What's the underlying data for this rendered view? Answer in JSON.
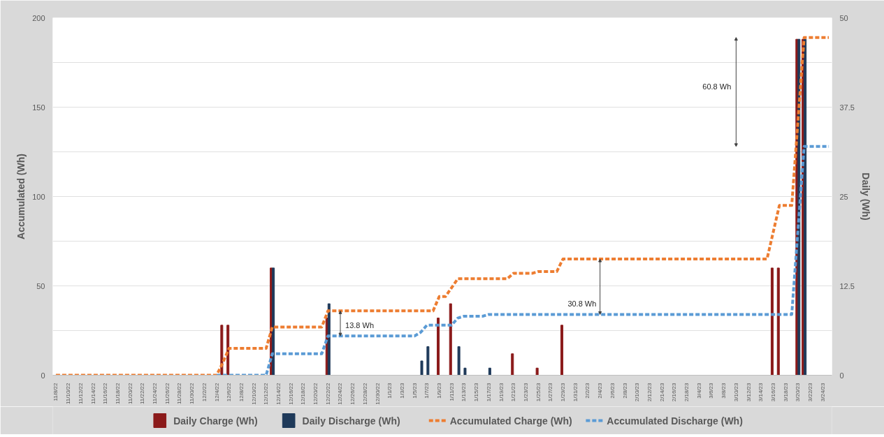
{
  "chart_data": {
    "type": "bar",
    "ylabel": "Accumulated (Wh)",
    "y2label": "Daily (Wh)",
    "categories": [
      "11/8/22",
      null,
      "11/10/22",
      null,
      "11/12/22",
      null,
      "11/14/22",
      null,
      "11/16/22",
      null,
      "11/18/22",
      null,
      "11/20/22",
      null,
      "11/22/22",
      null,
      "11/24/22",
      null,
      "11/26/22",
      null,
      "11/28/22",
      null,
      "11/30/22",
      null,
      "12/2/22",
      null,
      "12/4/22",
      null,
      "12/6/22",
      null,
      "12/8/22",
      null,
      "12/10/22",
      null,
      "12/12/22",
      null,
      "12/14/22",
      null,
      "12/16/22",
      null,
      "12/18/22",
      null,
      "12/20/22",
      null,
      "12/22/22",
      null,
      "12/24/22",
      null,
      "12/26/22",
      null,
      "12/28/22",
      null,
      "12/30/22",
      null,
      "1/1/23",
      null,
      "1/3/23",
      null,
      "1/5/23",
      null,
      "1/7/23",
      null,
      "1/9/23",
      null,
      "1/11/23",
      null,
      "1/13/23",
      null,
      "1/15/23",
      null,
      "1/17/23",
      null,
      "1/19/23",
      null,
      "1/21/23",
      null,
      "1/23/23",
      null,
      "1/25/23",
      null,
      "1/27/23",
      null,
      "1/29/23",
      null,
      "1/31/23",
      null,
      "2/2/23",
      null,
      "2/4/23",
      null,
      "2/6/23",
      null,
      "2/8/23",
      null,
      "2/10/23",
      null,
      "2/12/23",
      null,
      "2/14/23",
      null,
      "2/16/23",
      null,
      "2/18/23",
      null,
      "3/4/23",
      null,
      "3/6/23",
      null,
      "3/8/23",
      null,
      "3/10/23",
      null,
      "3/12/23",
      null,
      "3/14/23",
      null,
      "3/16/23",
      null,
      "3/18/23",
      null,
      "3/20/23",
      null,
      "3/22/23",
      null,
      "3/24/23",
      null
    ],
    "series": [
      {
        "name": "Daily Charge (Wh)",
        "axis": "y2",
        "color": "#8b1a1a",
        "values": [
          null,
          null,
          null,
          null,
          null,
          null,
          null,
          null,
          null,
          null,
          null,
          null,
          null,
          null,
          null,
          null,
          null,
          null,
          null,
          null,
          null,
          null,
          null,
          null,
          null,
          null,
          null,
          7,
          7,
          null,
          null,
          null,
          null,
          null,
          null,
          15,
          null,
          null,
          null,
          null,
          null,
          null,
          null,
          null,
          8,
          null,
          null,
          null,
          null,
          null,
          null,
          null,
          null,
          null,
          null,
          null,
          null,
          null,
          null,
          null,
          null,
          null,
          8,
          null,
          10,
          null,
          null,
          null,
          null,
          null,
          null,
          null,
          null,
          null,
          3,
          null,
          null,
          null,
          1,
          null,
          null,
          null,
          7,
          null,
          null,
          null,
          null,
          null,
          null,
          null,
          null,
          null,
          null,
          null,
          null,
          null,
          null,
          null,
          null,
          null,
          null,
          null,
          null,
          null,
          null,
          null,
          null,
          null,
          null,
          null,
          null,
          null,
          null,
          null,
          null,
          null,
          15,
          15,
          null,
          null,
          47,
          47,
          null,
          null,
          null,
          null
        ]
      },
      {
        "name": "Daily  Discharge (Wh)",
        "axis": "y2",
        "color": "#1f3a5a",
        "values": [
          null,
          null,
          null,
          null,
          null,
          null,
          null,
          null,
          null,
          null,
          null,
          null,
          null,
          null,
          null,
          null,
          null,
          null,
          null,
          null,
          null,
          null,
          null,
          null,
          null,
          null,
          null,
          null,
          null,
          null,
          null,
          null,
          null,
          null,
          null,
          15,
          null,
          null,
          null,
          null,
          null,
          null,
          null,
          null,
          10,
          null,
          null,
          null,
          null,
          null,
          null,
          null,
          null,
          null,
          null,
          null,
          null,
          null,
          null,
          2,
          4,
          null,
          null,
          null,
          null,
          4,
          1,
          null,
          null,
          null,
          1,
          null,
          null,
          null,
          null,
          null,
          null,
          null,
          null,
          null,
          null,
          null,
          null,
          null,
          null,
          null,
          null,
          null,
          null,
          null,
          null,
          null,
          null,
          null,
          null,
          null,
          null,
          null,
          null,
          null,
          null,
          null,
          null,
          null,
          null,
          null,
          null,
          null,
          null,
          null,
          null,
          null,
          null,
          null,
          null,
          null,
          null,
          null,
          null,
          null,
          47,
          47,
          null,
          null,
          null,
          null
        ]
      },
      {
        "name": "Accumulated Charge (Wh)",
        "type": "line",
        "color": "#ed7d31",
        "values": [
          0,
          0,
          0,
          0,
          0,
          0,
          0,
          0,
          0,
          0,
          0,
          0,
          0,
          0,
          0,
          0,
          0,
          0,
          0,
          0,
          0,
          0,
          0,
          0,
          0,
          0,
          0,
          7,
          15,
          15,
          15,
          15,
          15,
          15,
          15,
          27,
          27,
          27,
          27,
          27,
          27,
          27,
          27,
          27,
          36,
          36,
          36,
          36,
          36,
          36,
          36,
          36,
          36,
          36,
          36,
          36,
          36,
          36,
          36,
          36,
          36,
          36,
          44,
          44,
          49,
          54,
          54,
          54,
          54,
          54,
          54,
          54,
          54,
          54,
          57,
          57,
          57,
          57,
          58,
          58,
          58,
          58,
          65,
          65,
          65,
          65,
          65,
          65,
          65,
          65,
          65,
          65,
          65,
          65,
          65,
          65,
          65,
          65,
          65,
          65,
          65,
          65,
          65,
          65,
          65,
          65,
          65,
          65,
          65,
          65,
          65,
          65,
          65,
          65,
          65,
          65,
          80,
          95,
          95,
          95,
          142,
          189,
          189,
          189,
          189,
          189
        ]
      },
      {
        "name": "Accumulated Discharge (Wh)",
        "type": "line",
        "color": "#5b9bd5",
        "values": [
          null,
          null,
          null,
          null,
          null,
          null,
          null,
          null,
          null,
          null,
          null,
          null,
          null,
          null,
          null,
          null,
          null,
          null,
          null,
          null,
          null,
          null,
          null,
          null,
          null,
          null,
          0,
          0,
          0,
          0,
          0,
          0,
          0,
          0,
          0,
          12,
          12,
          12,
          12,
          12,
          12,
          12,
          12,
          12,
          22,
          22,
          22,
          22,
          22,
          22,
          22,
          22,
          22,
          22,
          22,
          22,
          22,
          22,
          22,
          24,
          28,
          28,
          28,
          28,
          28,
          32,
          33,
          33,
          33,
          33,
          34,
          34,
          34,
          34,
          34,
          34,
          34,
          34,
          34,
          34,
          34,
          34,
          34,
          34,
          34,
          34,
          34,
          34,
          34,
          34,
          34,
          34,
          34,
          34,
          34,
          34,
          34,
          34,
          34,
          34,
          34,
          34,
          34,
          34,
          34,
          34,
          34,
          34,
          34,
          34,
          34,
          34,
          34,
          34,
          34,
          34,
          34,
          34,
          34,
          34,
          81,
          128,
          128,
          128,
          128,
          128
        ]
      }
    ],
    "ylim": [
      0,
      200
    ],
    "yticks": [
      0,
      {
        "value": 25,
        "label": null
      },
      50,
      {
        "value": 75,
        "label": null
      },
      100,
      {
        "value": 125,
        "label": null
      },
      150,
      {
        "value": 175,
        "label": null
      },
      200
    ],
    "y2lim": [
      0,
      50
    ],
    "y2ticks": [
      0,
      12.5,
      25,
      37.5,
      50
    ],
    "annotations": [
      {
        "text": "13.8 Wh",
        "x": "12/24/22",
        "y": 22
      },
      {
        "text": "30.8 Wh",
        "x": "2/4/23",
        "y": 34
      },
      "60.8 Wh"
    ],
    "grid": "y",
    "legend": "bottom",
    "line_style": "dashed"
  }
}
